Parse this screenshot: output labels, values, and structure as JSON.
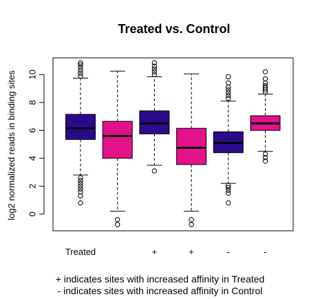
{
  "chart_data": {
    "type": "boxplot",
    "title": "Treated vs. Control",
    "xlabel": "",
    "ylabel": "log2 normalized reads in binding sites",
    "ylim": [
      -1.2,
      11.2
    ],
    "yticks": [
      0,
      2,
      4,
      6,
      8,
      10
    ],
    "ytick_labels": [
      "0",
      "2",
      "4",
      "6",
      "8",
      "10"
    ],
    "grid": false,
    "legend": "none",
    "colors": {
      "treated": "#2c0a8c",
      "control": "#e3118a",
      "outline": "#000000"
    },
    "categories": [
      "Treated",
      "",
      "+",
      "+",
      "-",
      "-"
    ],
    "boxes": [
      {
        "label": "Treated",
        "group": "treated",
        "q1": 5.35,
        "median": 6.15,
        "q3": 7.15,
        "whisker_low": 2.8,
        "whisker_high": 9.75,
        "outliers": [
          0.8,
          1.3,
          1.6,
          1.8,
          2.0,
          2.2,
          2.4,
          2.6,
          9.9,
          10.1,
          10.3,
          10.5,
          10.7,
          10.85
        ]
      },
      {
        "label": "",
        "group": "control",
        "q1": 4.0,
        "median": 5.6,
        "q3": 6.65,
        "whisker_low": 0.2,
        "whisker_high": 10.25,
        "outliers": [
          -0.4,
          -0.75
        ]
      },
      {
        "label": "+",
        "group": "treated",
        "q1": 5.75,
        "median": 6.5,
        "q3": 7.4,
        "whisker_low": 3.5,
        "whisker_high": 9.85,
        "outliers": [
          3.1,
          10.0,
          10.2,
          10.4,
          10.6,
          10.85
        ]
      },
      {
        "label": "+",
        "group": "control",
        "q1": 3.55,
        "median": 4.75,
        "q3": 6.15,
        "whisker_low": 0.2,
        "whisker_high": 10.05,
        "outliers": [
          -0.4,
          -0.75
        ]
      },
      {
        "label": "-",
        "group": "treated",
        "q1": 4.4,
        "median": 5.1,
        "q3": 5.9,
        "whisker_low": 2.2,
        "whisker_high": 8.1,
        "outliers": [
          0.8,
          1.5,
          1.7,
          1.9,
          2.05,
          8.3,
          8.5,
          8.7,
          8.9,
          9.1,
          9.4,
          9.85
        ]
      },
      {
        "label": "-",
        "group": "control",
        "q1": 6.0,
        "median": 6.5,
        "q3": 7.05,
        "whisker_low": 4.5,
        "whisker_high": 8.6,
        "outliers": [
          3.8,
          4.05,
          4.3,
          8.75,
          8.9,
          9.05,
          9.2,
          9.4,
          9.7,
          10.2
        ]
      }
    ]
  },
  "footnotes": {
    "line1": "+ indicates sites with increased affinity in Treated",
    "line2": "- indicates sites with increased affinity in Control"
  }
}
